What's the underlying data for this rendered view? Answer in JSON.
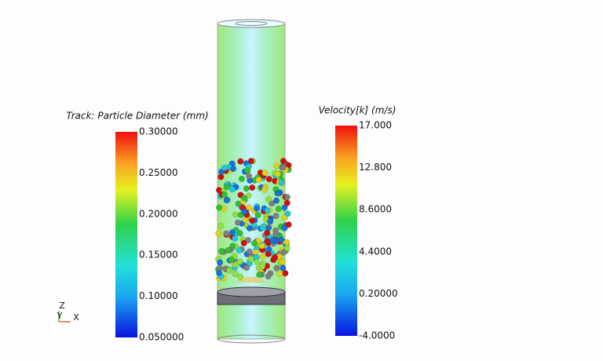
{
  "legends": [
    {
      "title": "Track: Particle Diameter (mm)",
      "labels": [
        "0.30000",
        "0.25000",
        "0.20000",
        "0.15000",
        "0.10000",
        "0.050000"
      ]
    },
    {
      "title": "Velocity[k] (m/s)",
      "labels": [
        "17.000",
        "12.800",
        "8.6000",
        "4.4000",
        "0.20000",
        "-4.0000"
      ]
    }
  ],
  "axes_triad": {
    "z": "Z",
    "y": "Y",
    "x": "X"
  }
}
